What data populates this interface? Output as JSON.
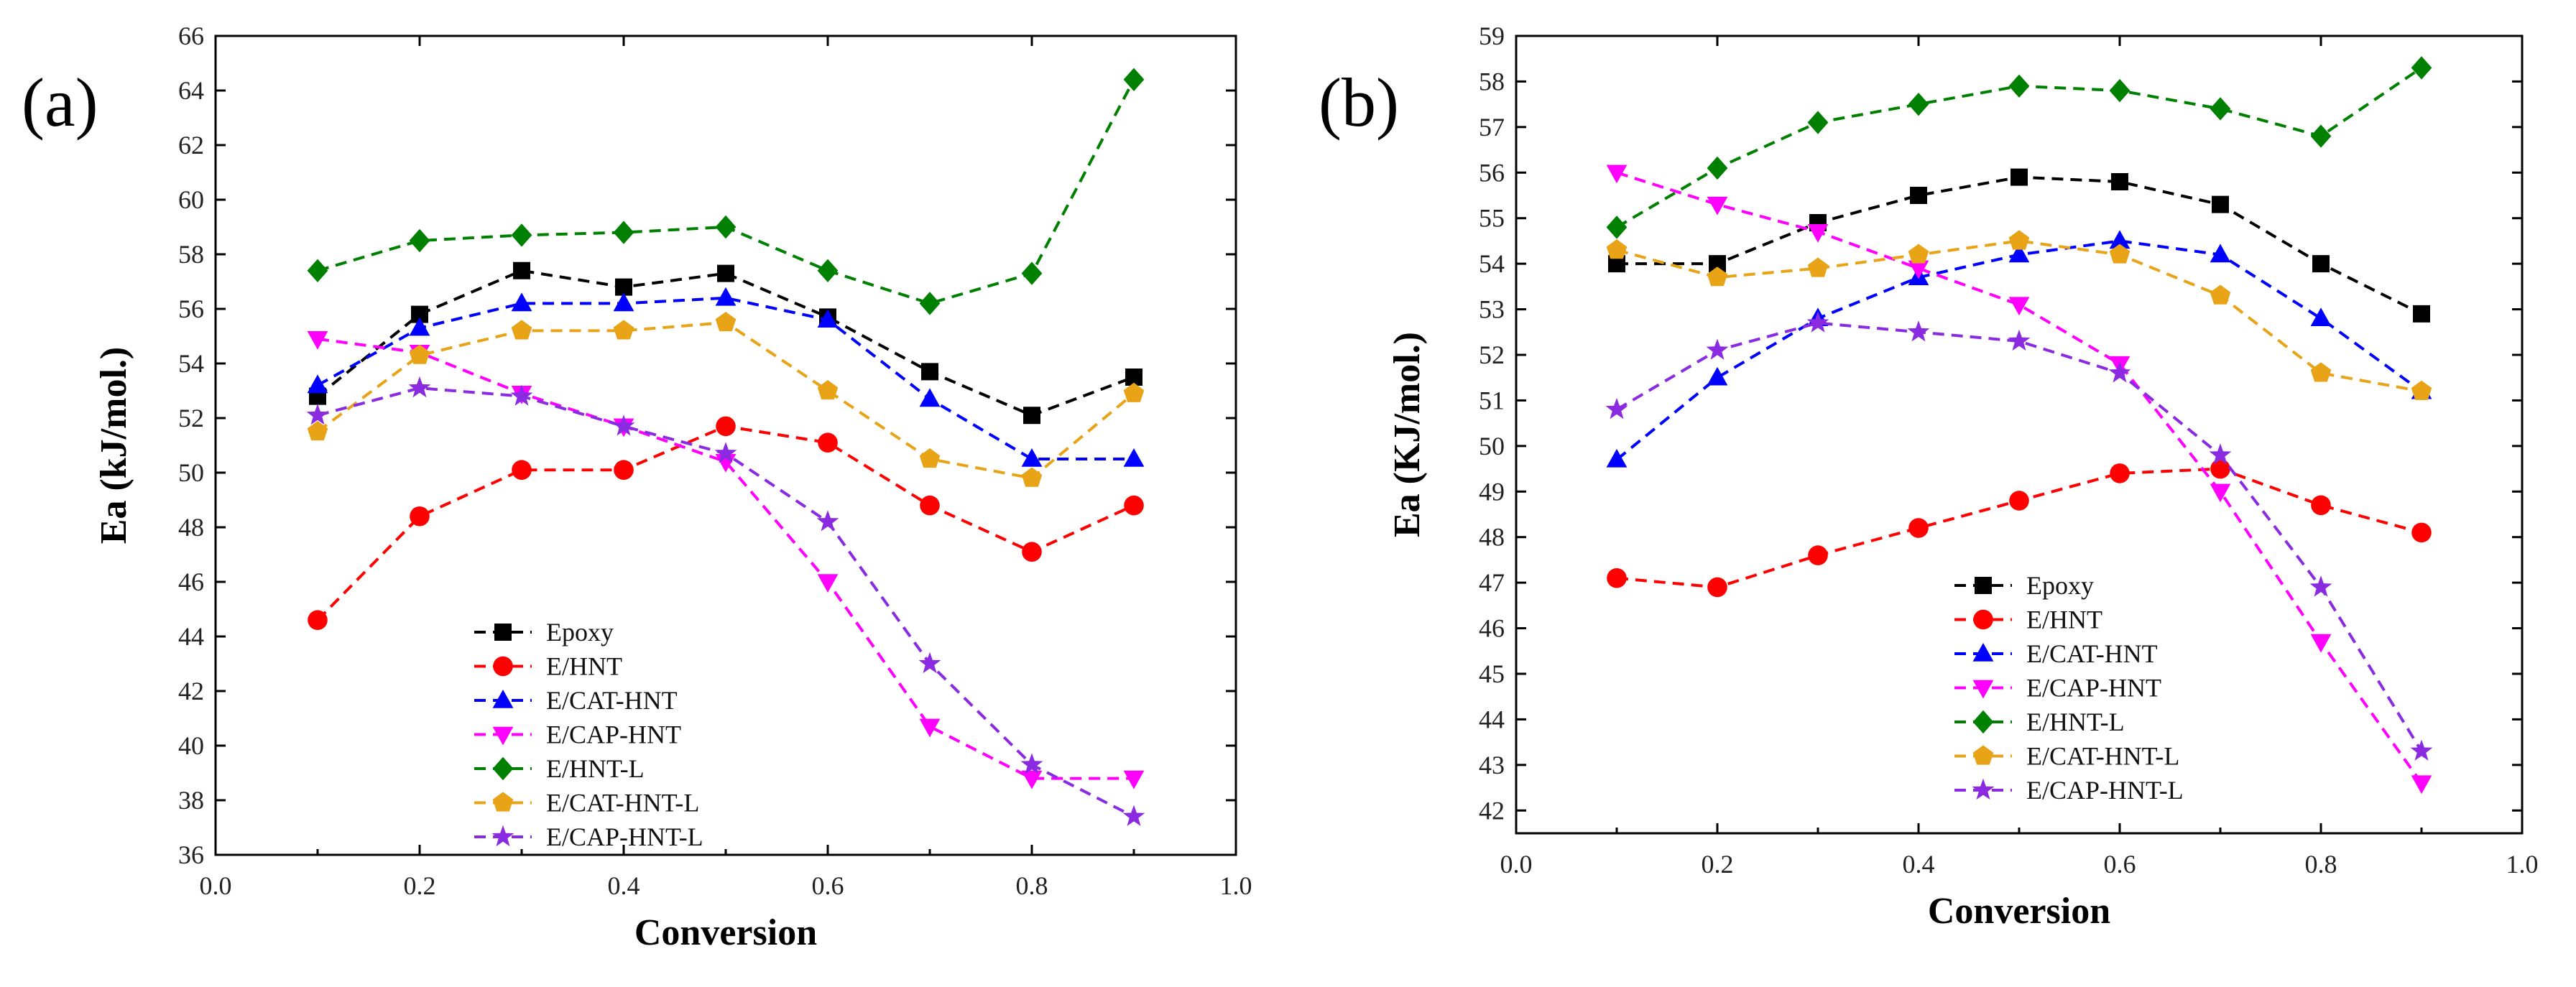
{
  "chart_data": [
    {
      "panel": "(a)",
      "type": "line",
      "xlabel": "Conversion",
      "ylabel": "Ea (kJ/mol.)",
      "xlim": [
        0.0,
        1.0
      ],
      "ylim": [
        36,
        66
      ],
      "x_ticks": [
        "0.0",
        "0.2",
        "0.4",
        "0.6",
        "0.8",
        "1.0"
      ],
      "y_ticks": [
        "36",
        "38",
        "40",
        "42",
        "44",
        "46",
        "48",
        "50",
        "52",
        "54",
        "56",
        "58",
        "60",
        "62",
        "64",
        "66"
      ],
      "legend_position": "lower-center",
      "x": [
        0.1,
        0.2,
        0.3,
        0.4,
        0.5,
        0.6,
        0.7,
        0.8,
        0.9
      ],
      "series": [
        {
          "name": "Epoxy",
          "color": "#000000",
          "marker": "square",
          "values": [
            52.8,
            55.8,
            57.4,
            56.8,
            57.3,
            55.7,
            53.7,
            52.1,
            53.5
          ]
        },
        {
          "name": "E/HNT",
          "color": "#ff0000",
          "marker": "circle",
          "values": [
            44.6,
            48.4,
            50.1,
            50.1,
            51.7,
            51.1,
            48.8,
            47.1,
            48.8
          ]
        },
        {
          "name": "E/CAT-HNT",
          "color": "#0000ff",
          "marker": "triangle-up",
          "values": [
            53.2,
            55.3,
            56.2,
            56.2,
            56.4,
            55.6,
            52.7,
            50.5,
            50.5
          ]
        },
        {
          "name": "E/CAP-HNT",
          "color": "#ff00ff",
          "marker": "triangle-down",
          "values": [
            54.9,
            54.4,
            52.9,
            51.7,
            50.4,
            46.0,
            40.7,
            38.8,
            38.8
          ]
        },
        {
          "name": "E/HNT-L",
          "color": "#008000",
          "marker": "diamond",
          "values": [
            57.4,
            58.5,
            58.7,
            58.8,
            59.0,
            57.4,
            56.2,
            57.3,
            64.4
          ]
        },
        {
          "name": "E/CAT-HNT-L",
          "color": "#e8a317",
          "marker": "pentagon",
          "values": [
            51.5,
            54.3,
            55.2,
            55.2,
            55.5,
            53.0,
            50.5,
            49.8,
            52.9
          ]
        },
        {
          "name": "E/CAP-HNT-L",
          "color": "#8a2be2",
          "marker": "star",
          "values": [
            52.1,
            53.1,
            52.8,
            51.7,
            50.7,
            48.2,
            43.0,
            39.3,
            37.4
          ]
        }
      ]
    },
    {
      "panel": "(b)",
      "type": "line",
      "xlabel": "Conversion",
      "ylabel": "Ea (KJ/mol.)",
      "xlim": [
        0.0,
        1.0
      ],
      "ylim": [
        41.5,
        59
      ],
      "x_ticks": [
        "0.0",
        "0.2",
        "0.4",
        "0.6",
        "0.8",
        "1.0"
      ],
      "y_ticks": [
        "42",
        "43",
        "44",
        "45",
        "46",
        "47",
        "48",
        "49",
        "50",
        "51",
        "52",
        "53",
        "54",
        "55",
        "56",
        "57",
        "58",
        "59"
      ],
      "legend_position": "lower-center",
      "x": [
        0.1,
        0.2,
        0.3,
        0.4,
        0.5,
        0.6,
        0.7,
        0.8,
        0.9
      ],
      "series": [
        {
          "name": "Epoxy",
          "color": "#000000",
          "marker": "square",
          "values": [
            54.0,
            54.0,
            54.9,
            55.5,
            55.9,
            55.8,
            55.3,
            54.0,
            52.9
          ]
        },
        {
          "name": "E/HNT",
          "color": "#ff0000",
          "marker": "circle",
          "values": [
            47.1,
            46.9,
            47.6,
            48.2,
            48.8,
            49.4,
            49.5,
            48.7,
            48.1
          ]
        },
        {
          "name": "E/CAT-HNT",
          "color": "#0000ff",
          "marker": "triangle-up",
          "values": [
            49.7,
            51.5,
            52.8,
            53.7,
            54.2,
            54.5,
            54.2,
            52.8,
            51.2
          ]
        },
        {
          "name": "E/CAP-HNT",
          "color": "#ff00ff",
          "marker": "triangle-down",
          "values": [
            56.0,
            55.3,
            54.7,
            53.9,
            53.1,
            51.8,
            49.0,
            45.7,
            42.6
          ]
        },
        {
          "name": "E/HNT-L",
          "color": "#008000",
          "marker": "diamond",
          "values": [
            54.8,
            56.1,
            57.1,
            57.5,
            57.9,
            57.8,
            57.4,
            56.8,
            58.3
          ]
        },
        {
          "name": "E/CAT-HNT-L",
          "color": "#e8a317",
          "marker": "pentagon",
          "values": [
            54.3,
            53.7,
            53.9,
            54.2,
            54.5,
            54.2,
            53.3,
            51.6,
            51.2
          ]
        },
        {
          "name": "E/CAP-HNT-L",
          "color": "#8a2be2",
          "marker": "star",
          "values": [
            50.8,
            52.1,
            52.7,
            52.5,
            52.3,
            51.6,
            49.8,
            46.9,
            43.3
          ]
        }
      ]
    }
  ]
}
